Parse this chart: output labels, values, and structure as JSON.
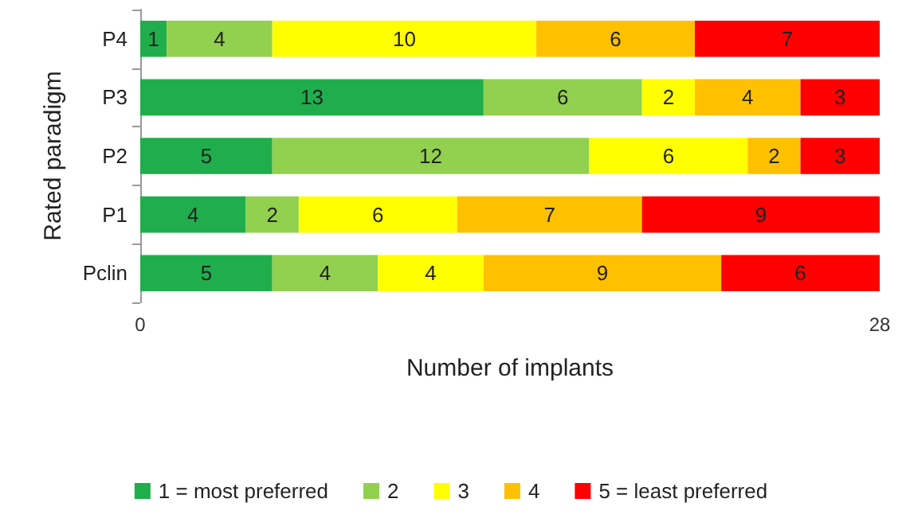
{
  "chart_data": {
    "type": "bar",
    "orientation": "horizontal",
    "stacked": true,
    "categories": [
      "P4",
      "P3",
      "P2",
      "P1",
      "Pclin"
    ],
    "series": [
      {
        "name": "1 = most preferred",
        "color": "#1fae4b",
        "values": [
          1,
          13,
          5,
          4,
          5
        ]
      },
      {
        "name": "2",
        "color": "#92d050",
        "values": [
          4,
          6,
          12,
          2,
          4
        ]
      },
      {
        "name": "3",
        "color": "#ffff00",
        "values": [
          10,
          2,
          6,
          6,
          4
        ]
      },
      {
        "name": "4",
        "color": "#ffc000",
        "values": [
          6,
          4,
          2,
          7,
          9
        ]
      },
      {
        "name": "5 = least preferred",
        "color": "#ff0000",
        "values": [
          7,
          3,
          3,
          9,
          6
        ]
      }
    ],
    "xlim": [
      0,
      28
    ],
    "xticks": [
      0,
      28
    ],
    "xlabel": "Number of implants",
    "ylabel": "Rated paradigm",
    "data_labels": true,
    "legend": "bottom",
    "grid": false
  }
}
